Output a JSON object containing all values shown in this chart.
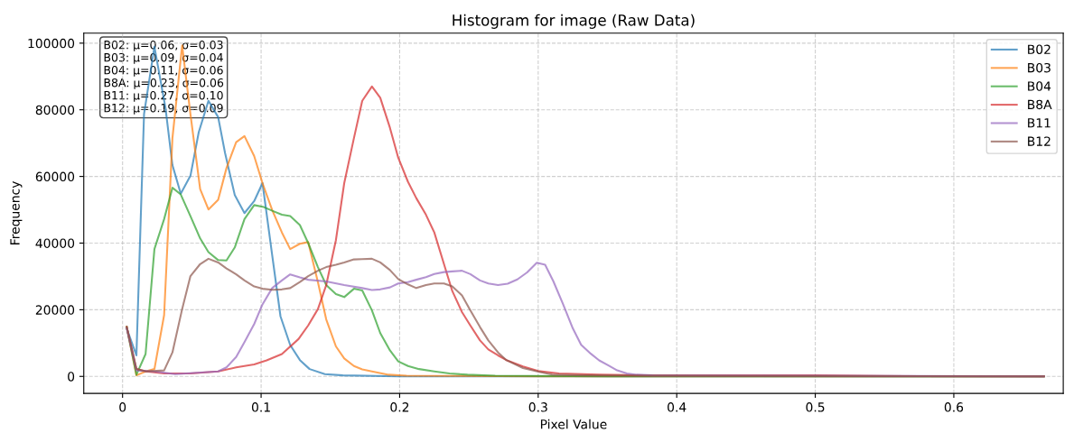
{
  "chart_data": {
    "type": "line",
    "title": "Histogram for image (Raw Data)",
    "xlabel": "Pixel Value",
    "ylabel": "Frequency",
    "xlim": [
      -0.028,
      0.679
    ],
    "ylim": [
      -5100,
      103000
    ],
    "xticks": [
      0,
      0.1,
      0.2,
      0.3,
      0.4,
      0.5,
      0.6
    ],
    "yticks": [
      0,
      20000,
      40000,
      60000,
      80000,
      100000
    ],
    "grid": true,
    "legend": "top right",
    "marker": "none",
    "line_style": "solid",
    "annotations": [
      "B02: μ=0.06, σ=0.03",
      "B03: μ=0.09, σ=0.04",
      "B04: μ=0.11, σ=0.06",
      "B8A: μ=0.23, σ=0.06",
      "B11: μ=0.27, σ=0.10",
      "B12: μ=0.19, σ=0.09"
    ],
    "series": [
      {
        "name": "B02",
        "color": "#1f77b4",
        "x": [
          0.003,
          0.01,
          0.0155,
          0.023,
          0.031,
          0.036,
          0.042,
          0.049,
          0.055,
          0.062,
          0.069,
          0.074,
          0.081,
          0.088,
          0.095,
          0.101,
          0.108,
          0.114,
          0.121,
          0.128,
          0.135,
          0.146,
          0.159,
          0.2,
          0.3,
          0.665
        ],
        "values": [
          14400,
          6300,
          78700,
          98900,
          80500,
          63400,
          54800,
          60200,
          73300,
          82700,
          77800,
          67000,
          54400,
          49000,
          52600,
          58000,
          36400,
          18000,
          9400,
          4900,
          2200,
          700,
          300,
          0,
          0,
          0
        ]
      },
      {
        "name": "B03",
        "color": "#ff7f0e",
        "x": [
          0.003,
          0.01,
          0.0166,
          0.023,
          0.03,
          0.036,
          0.043,
          0.049,
          0.056,
          0.062,
          0.069,
          0.075,
          0.082,
          0.088,
          0.095,
          0.101,
          0.108,
          0.115,
          0.121,
          0.128,
          0.134,
          0.141,
          0.147,
          0.154,
          0.16,
          0.167,
          0.173,
          0.18,
          0.192,
          0.205,
          0.3,
          0.665
        ],
        "values": [
          14800,
          300,
          1500,
          2200,
          18400,
          71500,
          99300,
          78700,
          56200,
          50100,
          53000,
          62500,
          70300,
          72100,
          66100,
          58000,
          49900,
          43200,
          38200,
          39800,
          40300,
          28300,
          17100,
          9000,
          5400,
          3100,
          2100,
          1500,
          500,
          200,
          0,
          0
        ]
      },
      {
        "name": "B04",
        "color": "#2ca02c",
        "x": [
          0.003,
          0.01,
          0.0166,
          0.023,
          0.03,
          0.036,
          0.042,
          0.049,
          0.056,
          0.062,
          0.069,
          0.075,
          0.081,
          0.088,
          0.095,
          0.102,
          0.108,
          0.115,
          0.121,
          0.128,
          0.134,
          0.141,
          0.147,
          0.154,
          0.16,
          0.167,
          0.173,
          0.18,
          0.186,
          0.193,
          0.199,
          0.206,
          0.214,
          0.225,
          0.236,
          0.249,
          0.269,
          0.35,
          0.665
        ],
        "values": [
          14800,
          500,
          6700,
          38200,
          47200,
          56600,
          54600,
          48100,
          41400,
          37300,
          34900,
          34800,
          38700,
          47200,
          51400,
          50800,
          49700,
          48500,
          48100,
          45400,
          40000,
          32800,
          27400,
          24700,
          23800,
          26300,
          25800,
          19800,
          13000,
          7800,
          4500,
          3100,
          2200,
          1500,
          900,
          500,
          200,
          0,
          0
        ]
      },
      {
        "name": "B8A",
        "color": "#d62728",
        "x": [
          0.003,
          0.01,
          0.017,
          0.03,
          0.049,
          0.069,
          0.082,
          0.095,
          0.104,
          0.115,
          0.127,
          0.134,
          0.141,
          0.147,
          0.154,
          0.16,
          0.167,
          0.173,
          0.18,
          0.186,
          0.193,
          0.199,
          0.206,
          0.212,
          0.219,
          0.225,
          0.232,
          0.238,
          0.245,
          0.251,
          0.258,
          0.264,
          0.271,
          0.277,
          0.289,
          0.3,
          0.315,
          0.344,
          0.377,
          0.45,
          0.5,
          0.55,
          0.665
        ],
        "values": [
          14800,
          2200,
          1500,
          900,
          900,
          1500,
          2700,
          3600,
          4800,
          6700,
          11200,
          15300,
          20200,
          27400,
          40900,
          58000,
          71500,
          82700,
          87000,
          83600,
          74600,
          65600,
          58400,
          53500,
          48500,
          43200,
          33700,
          25600,
          19300,
          15300,
          10800,
          8100,
          6300,
          4900,
          3000,
          1600,
          900,
          500,
          300,
          300,
          300,
          100,
          0
        ]
      },
      {
        "name": "B11",
        "color": "#9467bd",
        "x": [
          0.003,
          0.01,
          0.023,
          0.038,
          0.069,
          0.075,
          0.082,
          0.088,
          0.095,
          0.101,
          0.108,
          0.115,
          0.121,
          0.128,
          0.134,
          0.147,
          0.16,
          0.173,
          0.18,
          0.186,
          0.193,
          0.199,
          0.206,
          0.212,
          0.219,
          0.225,
          0.232,
          0.238,
          0.245,
          0.251,
          0.258,
          0.264,
          0.271,
          0.278,
          0.285,
          0.292,
          0.299,
          0.305,
          0.311,
          0.318,
          0.325,
          0.331,
          0.338,
          0.344,
          0.351,
          0.357,
          0.364,
          0.371,
          0.383,
          0.5,
          0.665
        ],
        "values": [
          14400,
          1800,
          1500,
          700,
          1500,
          2700,
          5800,
          10300,
          15700,
          21600,
          26500,
          28800,
          30600,
          29700,
          29000,
          28500,
          27400,
          26500,
          25900,
          26100,
          26700,
          27900,
          28300,
          29000,
          29800,
          30700,
          31300,
          31500,
          31700,
          30700,
          28800,
          27900,
          27400,
          27800,
          29100,
          31200,
          34100,
          33500,
          28500,
          21600,
          14400,
          9500,
          6800,
          4800,
          3200,
          1800,
          900,
          500,
          300,
          200,
          0
        ]
      },
      {
        "name": "B12",
        "color": "#8c564b",
        "x": [
          0.003,
          0.01,
          0.017,
          0.03,
          0.036,
          0.043,
          0.049,
          0.056,
          0.062,
          0.069,
          0.075,
          0.082,
          0.088,
          0.095,
          0.101,
          0.108,
          0.115,
          0.121,
          0.128,
          0.134,
          0.141,
          0.147,
          0.154,
          0.16,
          0.167,
          0.173,
          0.18,
          0.186,
          0.193,
          0.199,
          0.206,
          0.212,
          0.219,
          0.225,
          0.232,
          0.238,
          0.245,
          0.251,
          0.258,
          0.264,
          0.271,
          0.277,
          0.289,
          0.3,
          0.311,
          0.333,
          0.45,
          0.665
        ],
        "values": [
          14800,
          2200,
          1500,
          1800,
          7200,
          20200,
          30100,
          33700,
          35300,
          34200,
          32400,
          30600,
          28800,
          27000,
          26300,
          26000,
          26100,
          26500,
          28300,
          30100,
          31700,
          32800,
          33500,
          34200,
          35100,
          35200,
          35300,
          34200,
          31900,
          29200,
          27600,
          26500,
          27400,
          27900,
          27900,
          27000,
          24300,
          19800,
          14800,
          10800,
          7200,
          4900,
          2500,
          1400,
          500,
          300,
          100,
          0
        ]
      }
    ]
  }
}
